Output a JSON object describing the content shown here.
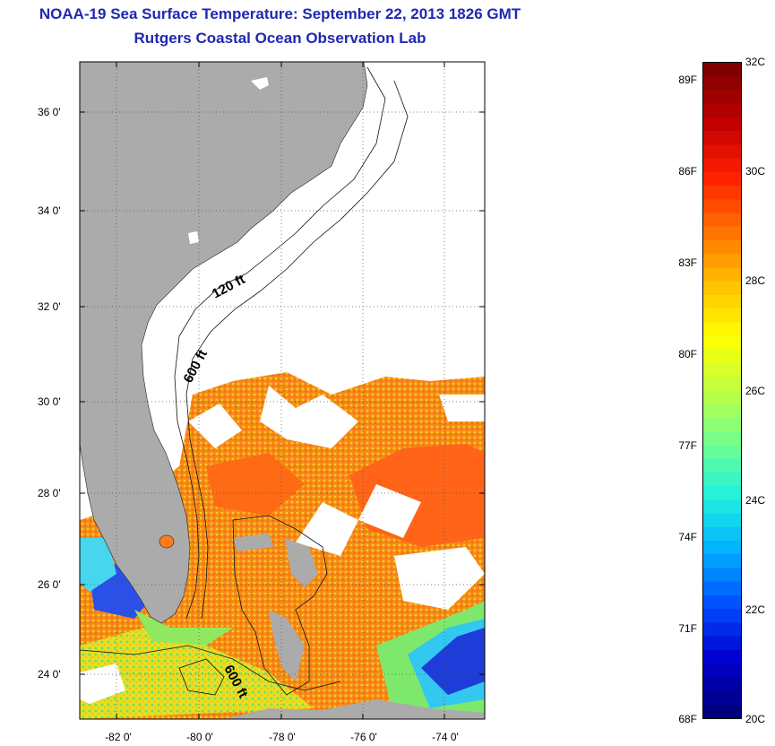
{
  "header": {
    "title": "NOAA-19 Sea Surface Temperature:  September 22, 2013 1826 GMT",
    "subtitle": "Rutgers Coastal Ocean Observation Lab"
  },
  "map": {
    "lat_labels": [
      "36 0'",
      "34 0'",
      "32 0'",
      "30 0'",
      "28 0'",
      "26 0'",
      "24 0'"
    ],
    "lon_labels": [
      "-82 0'",
      "-80 0'",
      "-78 0'",
      "-76 0'",
      "-74 0'"
    ],
    "contour_labels": [
      "120 ft",
      "600 ft",
      "600 ft"
    ],
    "colors": {
      "land": "#ababab",
      "cloud": "#ffffff"
    }
  },
  "colorbar": {
    "fahrenheit_labels": [
      "89F",
      "86F",
      "83F",
      "80F",
      "77F",
      "74F",
      "71F",
      "68F"
    ],
    "celsius_labels": [
      "32C",
      "30C",
      "28C",
      "26C",
      "24C",
      "22C",
      "20C"
    ],
    "range_c": [
      20,
      32
    ],
    "gradient": [
      "#00007f",
      "#0000d0",
      "#0050ff",
      "#00b0ff",
      "#20f0e0",
      "#70ff90",
      "#c0ff40",
      "#ffff00",
      "#ffc000",
      "#ff7000",
      "#ff2000",
      "#c00000",
      "#7f0000"
    ]
  }
}
